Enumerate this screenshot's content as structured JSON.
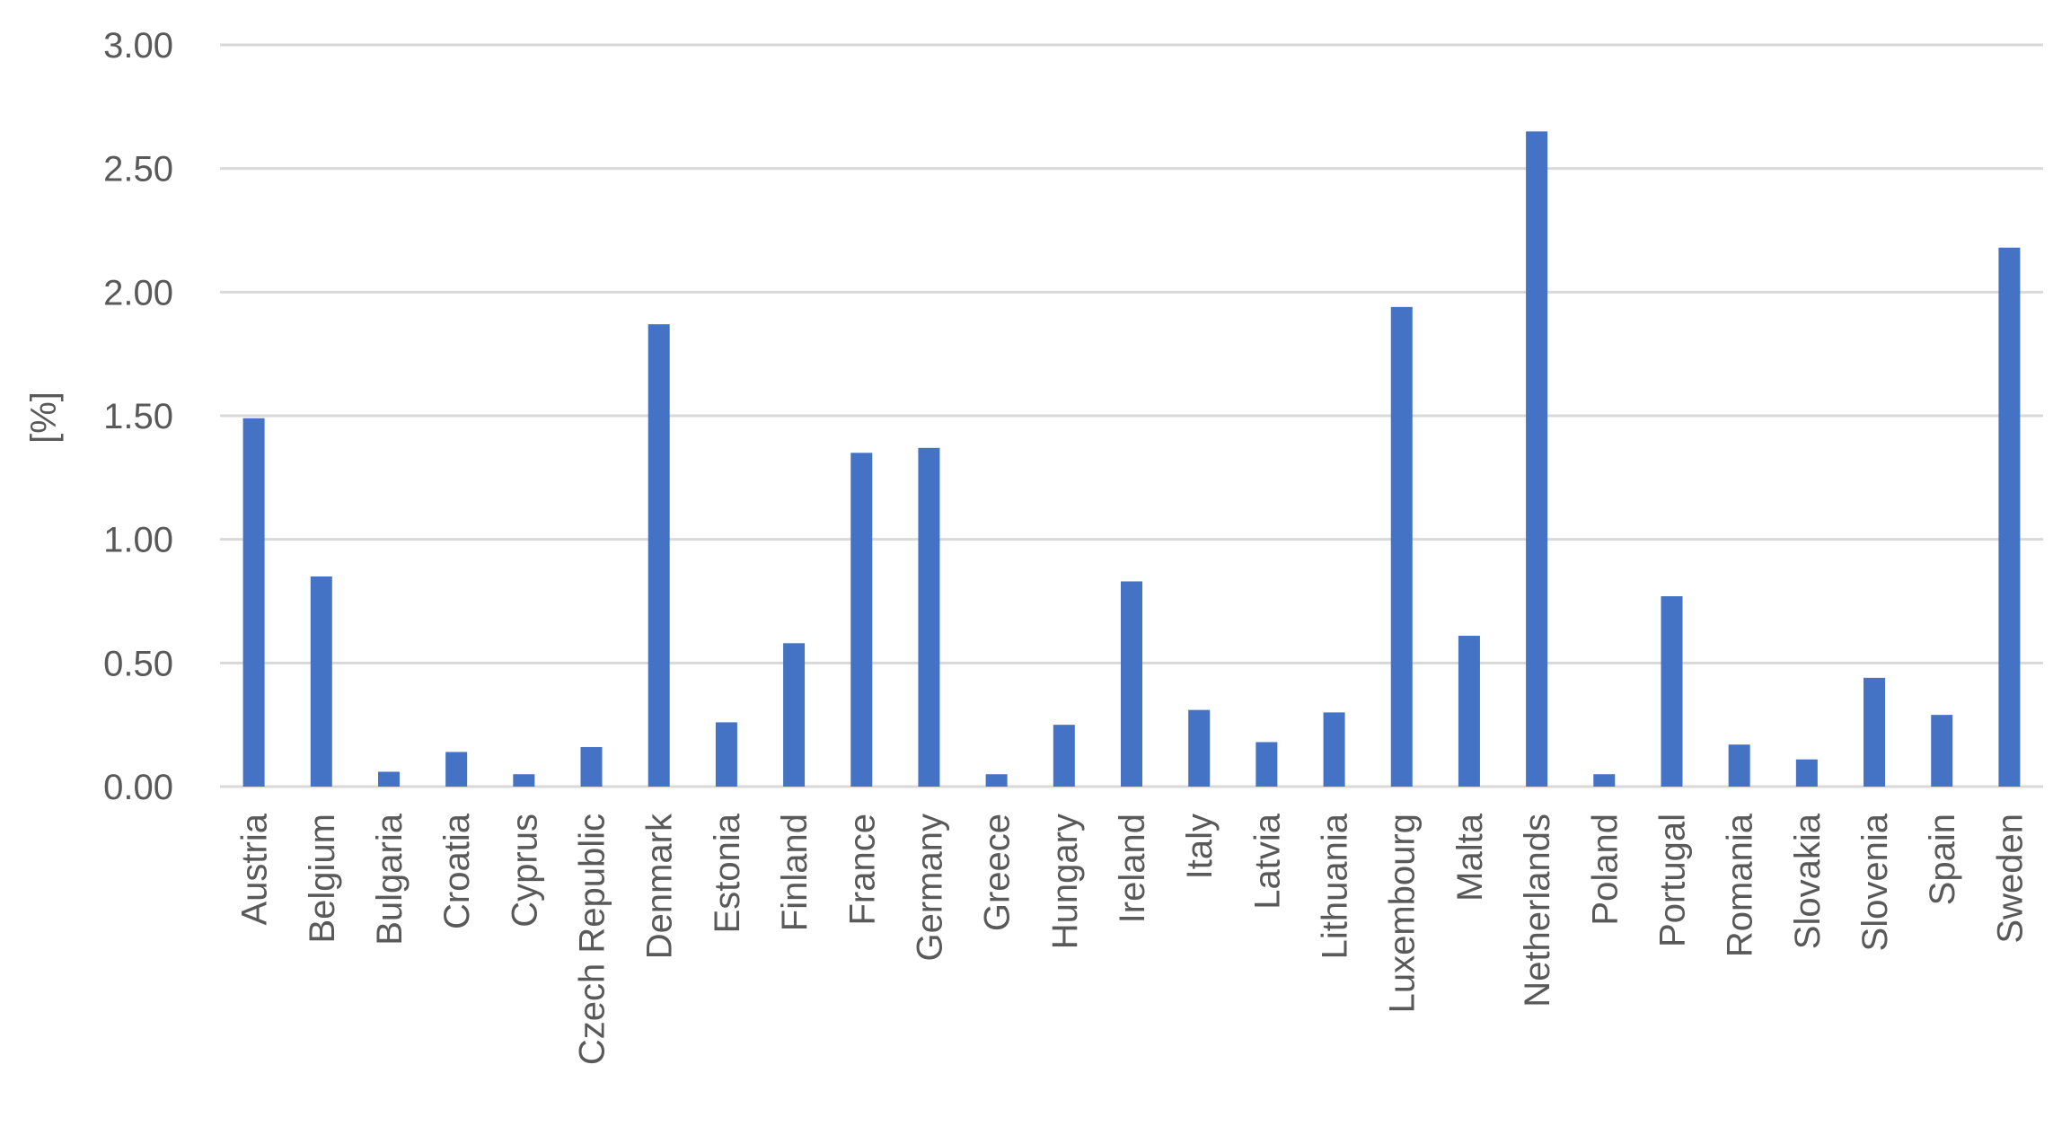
{
  "chart_data": {
    "type": "bar",
    "ylabel": "[%]",
    "xlabel": "",
    "title": "",
    "ylim": [
      0,
      3
    ],
    "yticks": [
      "0.00",
      "0.50",
      "1.00",
      "1.50",
      "2.00",
      "2.50",
      "3.00"
    ],
    "grid": true,
    "legend": "none",
    "bar_color": "#4472c4",
    "categories": [
      "Austria",
      "Belgium",
      "Bulgaria",
      "Croatia",
      "Cyprus",
      "Czech Republic",
      "Denmark",
      "Estonia",
      "Finland",
      "France",
      "Germany",
      "Greece",
      "Hungary",
      "Ireland",
      "Italy",
      "Latvia",
      "Lithuania",
      "Luxembourg",
      "Malta",
      "Netherlands",
      "Poland",
      "Portugal",
      "Romania",
      "Slovakia",
      "Slovenia",
      "Spain",
      "Sweden"
    ],
    "values": [
      1.49,
      0.85,
      0.06,
      0.14,
      0.05,
      0.16,
      1.87,
      0.26,
      0.58,
      1.35,
      1.37,
      0.05,
      0.25,
      0.83,
      0.31,
      0.18,
      0.3,
      1.94,
      0.61,
      2.65,
      0.05,
      0.77,
      0.17,
      0.11,
      0.44,
      0.29,
      2.18
    ]
  }
}
